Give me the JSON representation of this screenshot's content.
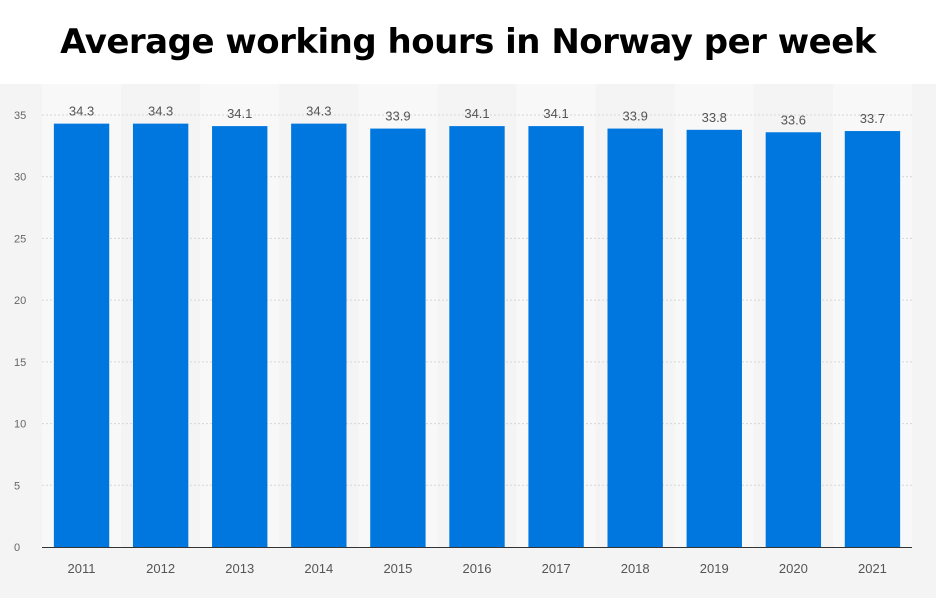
{
  "chart_data": {
    "type": "bar",
    "title": "Average working hours in Norway per week",
    "categories": [
      "2011",
      "2012",
      "2013",
      "2014",
      "2015",
      "2016",
      "2017",
      "2018",
      "2019",
      "2020",
      "2021"
    ],
    "values": [
      34.3,
      34.3,
      34.1,
      34.3,
      33.9,
      34.1,
      34.1,
      33.9,
      33.8,
      33.6,
      33.7
    ],
    "y_ticks": [
      0,
      5,
      10,
      15,
      20,
      25,
      30,
      35
    ],
    "ylim": [
      0,
      35
    ],
    "xlabel": "",
    "ylabel": "",
    "grid": true,
    "bar_color": "#0076df",
    "background_color": "#f4f4f4"
  }
}
